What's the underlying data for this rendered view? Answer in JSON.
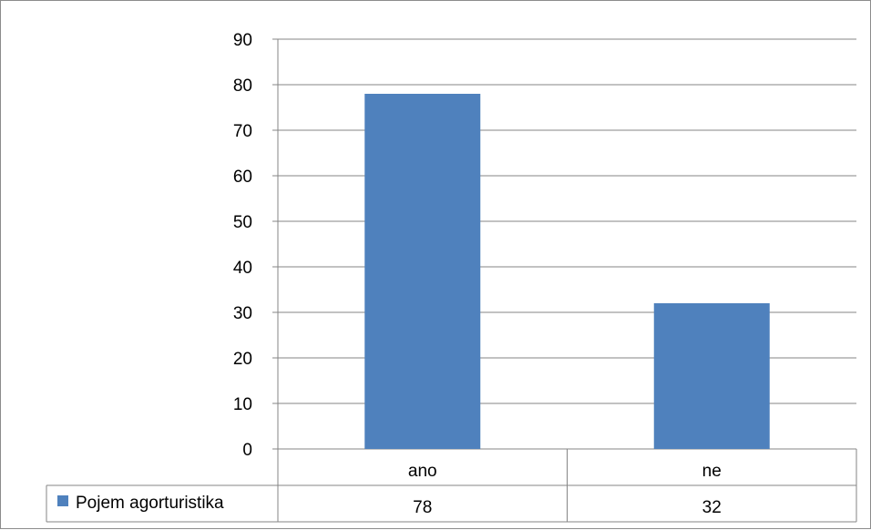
{
  "chart_data": {
    "type": "bar",
    "categories": [
      "ano",
      "ne"
    ],
    "series": [
      {
        "name": "Pojem agorturistika",
        "values": [
          78,
          32
        ],
        "color": "#4F81BD"
      }
    ],
    "ylim": [
      0,
      90
    ],
    "y_ticks": [
      "0",
      "10",
      "20",
      "30",
      "40",
      "50",
      "60",
      "70",
      "80",
      "90"
    ],
    "grid": true,
    "legend": "data-table",
    "table_values": [
      "78",
      "32"
    ]
  }
}
